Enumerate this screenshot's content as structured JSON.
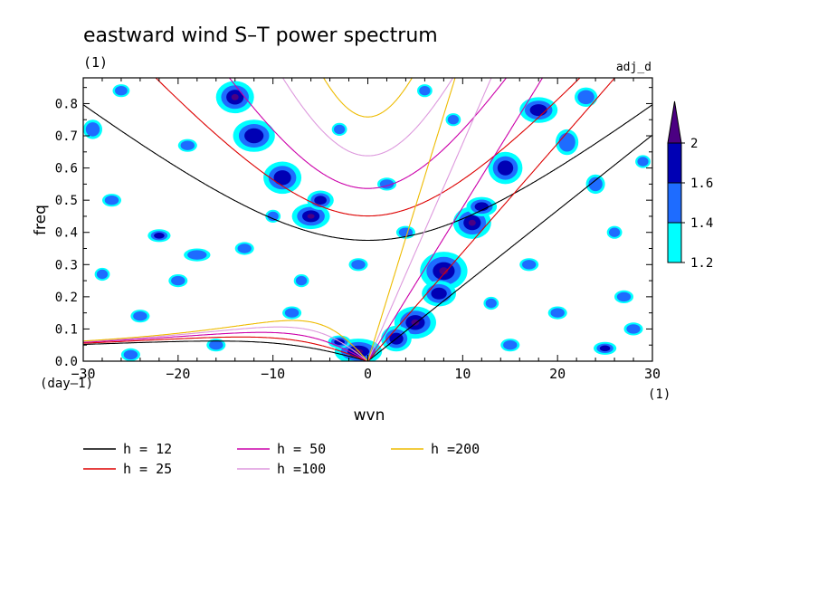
{
  "chart_data": {
    "type": "heatmap",
    "title": "eastward wind S–T power spectrum",
    "subtitle": "(1)",
    "tag": "adj_d",
    "xlabel": "wvn",
    "ylabel": "freq",
    "x_unit": "(1)",
    "y_unit": "(day–1)",
    "xlim": [
      -30,
      30
    ],
    "ylim": [
      0,
      0.88
    ],
    "x_ticks": [
      -30,
      -20,
      -10,
      0,
      10,
      20,
      30
    ],
    "x_tick_labels": [
      "−30",
      "−20",
      "−10",
      "0",
      "10",
      "20",
      "30"
    ],
    "y_ticks": [
      0.0,
      0.1,
      0.2,
      0.3,
      0.4,
      0.5,
      0.6,
      0.7,
      0.8
    ],
    "y_tick_labels": [
      "0.0",
      "0.1",
      "0.2",
      "0.3",
      "0.4",
      "0.5",
      "0.6",
      "0.7",
      "0.8"
    ],
    "colorbar": {
      "levels": [
        "1.2",
        "1.4",
        "1.6",
        "2"
      ],
      "colors": [
        "#00ffff",
        "#1e6cff",
        "#0000b4",
        "#4b0082"
      ]
    },
    "blobs": [
      {
        "x": 5,
        "y": 0.12,
        "rx": 2.2,
        "ry": 0.05,
        "v": 3
      },
      {
        "x": 8,
        "y": 0.28,
        "rx": 2.5,
        "ry": 0.06,
        "v": 3
      },
      {
        "x": 11,
        "y": 0.43,
        "rx": 2.0,
        "ry": 0.05,
        "v": 3
      },
      {
        "x": 14.5,
        "y": 0.6,
        "rx": 1.8,
        "ry": 0.05,
        "v": 2
      },
      {
        "x": 18,
        "y": 0.78,
        "rx": 2.0,
        "ry": 0.04,
        "v": 2
      },
      {
        "x": 12,
        "y": 0.48,
        "rx": 1.6,
        "ry": 0.03,
        "v": 2
      },
      {
        "x": 3,
        "y": 0.07,
        "rx": 1.6,
        "ry": 0.04,
        "v": 2
      },
      {
        "x": 7.5,
        "y": 0.21,
        "rx": 1.8,
        "ry": 0.04,
        "v": 2
      },
      {
        "x": 21,
        "y": 0.68,
        "rx": 1.2,
        "ry": 0.04,
        "v": 1
      },
      {
        "x": 25,
        "y": 0.04,
        "rx": 1.2,
        "ry": 0.02,
        "v": 2
      },
      {
        "x": 23,
        "y": 0.82,
        "rx": 1.2,
        "ry": 0.03,
        "v": 1
      },
      {
        "x": 24,
        "y": 0.55,
        "rx": 1.0,
        "ry": 0.03,
        "v": 1
      },
      {
        "x": -14,
        "y": 0.82,
        "rx": 2.0,
        "ry": 0.05,
        "v": 3
      },
      {
        "x": -12,
        "y": 0.7,
        "rx": 2.2,
        "ry": 0.05,
        "v": 2
      },
      {
        "x": -9,
        "y": 0.57,
        "rx": 2.0,
        "ry": 0.05,
        "v": 2
      },
      {
        "x": -6,
        "y": 0.45,
        "rx": 2.0,
        "ry": 0.04,
        "v": 3
      },
      {
        "x": -5,
        "y": 0.5,
        "rx": 1.4,
        "ry": 0.03,
        "v": 2
      },
      {
        "x": -1,
        "y": 0.03,
        "rx": 2.5,
        "ry": 0.04,
        "v": 3
      },
      {
        "x": -3,
        "y": 0.06,
        "rx": 1.2,
        "ry": 0.02,
        "v": 2
      },
      {
        "x": -22,
        "y": 0.39,
        "rx": 1.2,
        "ry": 0.02,
        "v": 2
      },
      {
        "x": -29,
        "y": 0.72,
        "rx": 1.0,
        "ry": 0.03,
        "v": 1
      },
      {
        "x": -27,
        "y": 0.5,
        "rx": 1.0,
        "ry": 0.02,
        "v": 1
      },
      {
        "x": -19,
        "y": 0.67,
        "rx": 1.0,
        "ry": 0.02,
        "v": 1
      },
      {
        "x": -25,
        "y": 0.02,
        "rx": 1.0,
        "ry": 0.02,
        "v": 1
      },
      {
        "x": -8,
        "y": 0.15,
        "rx": 1.0,
        "ry": 0.02,
        "v": 1
      },
      {
        "x": -18,
        "y": 0.33,
        "rx": 1.4,
        "ry": 0.02,
        "v": 1
      },
      {
        "x": -20,
        "y": 0.25,
        "rx": 1.0,
        "ry": 0.02,
        "v": 1
      },
      {
        "x": -24,
        "y": 0.14,
        "rx": 1.0,
        "ry": 0.02,
        "v": 1
      },
      {
        "x": -13,
        "y": 0.35,
        "rx": 1.0,
        "ry": 0.02,
        "v": 1
      },
      {
        "x": -26,
        "y": 0.84,
        "rx": 0.9,
        "ry": 0.02,
        "v": 1
      },
      {
        "x": 2,
        "y": 0.55,
        "rx": 1.0,
        "ry": 0.02,
        "v": 1
      },
      {
        "x": -1,
        "y": 0.3,
        "rx": 1.0,
        "ry": 0.02,
        "v": 1
      },
      {
        "x": 4,
        "y": 0.4,
        "rx": 1.0,
        "ry": 0.02,
        "v": 1
      },
      {
        "x": 17,
        "y": 0.3,
        "rx": 1.0,
        "ry": 0.02,
        "v": 1
      },
      {
        "x": 20,
        "y": 0.15,
        "rx": 1.0,
        "ry": 0.02,
        "v": 1
      },
      {
        "x": 27,
        "y": 0.2,
        "rx": 1.0,
        "ry": 0.02,
        "v": 1
      },
      {
        "x": 28,
        "y": 0.1,
        "rx": 1.0,
        "ry": 0.02,
        "v": 1
      },
      {
        "x": 15,
        "y": 0.05,
        "rx": 1.0,
        "ry": 0.02,
        "v": 1
      },
      {
        "x": 26,
        "y": 0.4,
        "rx": 0.8,
        "ry": 0.02,
        "v": 1
      },
      {
        "x": 29,
        "y": 0.62,
        "rx": 0.8,
        "ry": 0.02,
        "v": 1
      },
      {
        "x": -28,
        "y": 0.27,
        "rx": 0.8,
        "ry": 0.02,
        "v": 1
      },
      {
        "x": -16,
        "y": 0.05,
        "rx": 1.0,
        "ry": 0.02,
        "v": 1
      },
      {
        "x": -10,
        "y": 0.45,
        "rx": 0.8,
        "ry": 0.02,
        "v": 1
      },
      {
        "x": 9,
        "y": 0.75,
        "rx": 0.8,
        "ry": 0.02,
        "v": 1
      },
      {
        "x": 6,
        "y": 0.84,
        "rx": 0.8,
        "ry": 0.02,
        "v": 1
      },
      {
        "x": -3,
        "y": 0.72,
        "rx": 0.8,
        "ry": 0.02,
        "v": 1
      },
      {
        "x": -7,
        "y": 0.25,
        "rx": 0.8,
        "ry": 0.02,
        "v": 1
      },
      {
        "x": 13,
        "y": 0.18,
        "rx": 0.8,
        "ry": 0.02,
        "v": 1
      }
    ],
    "series": [
      {
        "name": "h = 12",
        "h": 12,
        "color": "#000000"
      },
      {
        "name": "h = 25",
        "h": 25,
        "color": "#dd0000"
      },
      {
        "name": "h = 50",
        "h": 50,
        "color": "#cc00aa"
      },
      {
        "name": "h =100",
        "h": 100,
        "color": "#dd99dd"
      },
      {
        "name": "h =200",
        "h": 200,
        "color": "#eebb00"
      }
    ]
  }
}
